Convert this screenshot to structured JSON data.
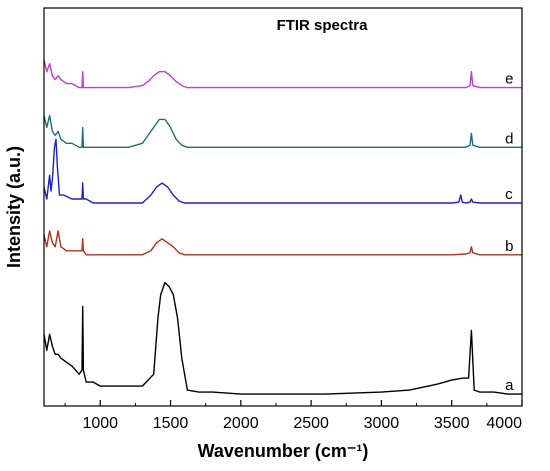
{
  "chart_data": {
    "type": "line",
    "title": "FTIR spectra",
    "xlabel": "Wavenumber (cm⁻¹)",
    "ylabel": "Intensity (a.u.)",
    "xlim": [
      600,
      4000
    ],
    "ylim": [
      0,
      1
    ],
    "xticks": [
      1000,
      1500,
      2000,
      2500,
      3000,
      3500,
      4000
    ],
    "y_ticks_shown": false,
    "grid": false,
    "legend": "none",
    "series": [
      {
        "name": "a",
        "color": "#000000",
        "x": [
          600,
          620,
          640,
          660,
          680,
          700,
          720,
          760,
          800,
          850,
          870,
          875,
          880,
          900,
          950,
          1000,
          1100,
          1200,
          1300,
          1380,
          1410,
          1430,
          1460,
          1490,
          1520,
          1550,
          1580,
          1620,
          1700,
          1800,
          2000,
          2300,
          2600,
          3000,
          3200,
          3400,
          3500,
          3580,
          3620,
          3640,
          3660,
          3700,
          3800,
          3900,
          4000
        ],
        "values": [
          0.18,
          0.14,
          0.18,
          0.15,
          0.13,
          0.13,
          0.12,
          0.11,
          0.1,
          0.08,
          0.09,
          0.25,
          0.09,
          0.06,
          0.06,
          0.05,
          0.05,
          0.05,
          0.05,
          0.08,
          0.22,
          0.28,
          0.31,
          0.3,
          0.28,
          0.22,
          0.12,
          0.04,
          0.035,
          0.035,
          0.03,
          0.03,
          0.03,
          0.035,
          0.04,
          0.055,
          0.065,
          0.07,
          0.07,
          0.19,
          0.04,
          0.035,
          0.035,
          0.03,
          0.03
        ]
      },
      {
        "name": "b",
        "color": "#b0341b",
        "x": [
          600,
          620,
          640,
          660,
          680,
          700,
          720,
          760,
          800,
          850,
          870,
          875,
          880,
          900,
          950,
          1000,
          1100,
          1200,
          1300,
          1360,
          1400,
          1440,
          1480,
          1520,
          1560,
          1600,
          1700,
          2000,
          2500,
          3000,
          3500,
          3600,
          3630,
          3640,
          3650,
          3700,
          4000
        ],
        "values": [
          0.43,
          0.4,
          0.44,
          0.41,
          0.4,
          0.44,
          0.4,
          0.39,
          0.39,
          0.39,
          0.39,
          0.42,
          0.39,
          0.38,
          0.38,
          0.38,
          0.38,
          0.38,
          0.38,
          0.39,
          0.41,
          0.42,
          0.41,
          0.4,
          0.385,
          0.38,
          0.38,
          0.38,
          0.38,
          0.38,
          0.38,
          0.382,
          0.385,
          0.4,
          0.385,
          0.38,
          0.38
        ]
      },
      {
        "name": "c",
        "color": "#2020c0",
        "x": [
          600,
          620,
          640,
          650,
          660,
          675,
          685,
          695,
          710,
          740,
          800,
          850,
          870,
          875,
          880,
          900,
          950,
          1000,
          1100,
          1200,
          1300,
          1360,
          1400,
          1440,
          1480,
          1520,
          1560,
          1600,
          1700,
          2000,
          2500,
          3000,
          3500,
          3550,
          3565,
          3575,
          3600,
          3630,
          3640,
          3650,
          3700,
          4000
        ],
        "values": [
          0.55,
          0.52,
          0.58,
          0.54,
          0.57,
          0.65,
          0.67,
          0.6,
          0.53,
          0.53,
          0.52,
          0.52,
          0.52,
          0.56,
          0.52,
          0.52,
          0.51,
          0.51,
          0.51,
          0.51,
          0.51,
          0.53,
          0.55,
          0.56,
          0.55,
          0.53,
          0.515,
          0.51,
          0.51,
          0.51,
          0.51,
          0.51,
          0.51,
          0.512,
          0.53,
          0.512,
          0.51,
          0.512,
          0.52,
          0.512,
          0.51,
          0.51
        ]
      },
      {
        "name": "d",
        "color": "#1f6f78",
        "x": [
          600,
          620,
          640,
          660,
          680,
          700,
          720,
          760,
          800,
          850,
          870,
          875,
          880,
          900,
          950,
          1000,
          1100,
          1200,
          1300,
          1340,
          1380,
          1420,
          1460,
          1500,
          1540,
          1580,
          1620,
          1700,
          2000,
          2500,
          3000,
          3500,
          3600,
          3630,
          3640,
          3650,
          3700,
          4000
        ],
        "values": [
          0.73,
          0.7,
          0.73,
          0.69,
          0.68,
          0.69,
          0.67,
          0.66,
          0.66,
          0.65,
          0.65,
          0.7,
          0.65,
          0.65,
          0.65,
          0.65,
          0.65,
          0.65,
          0.66,
          0.68,
          0.7,
          0.72,
          0.72,
          0.7,
          0.67,
          0.655,
          0.65,
          0.65,
          0.65,
          0.65,
          0.65,
          0.65,
          0.65,
          0.655,
          0.685,
          0.655,
          0.65,
          0.65
        ]
      },
      {
        "name": "e",
        "color": "#c23bd4",
        "x": [
          600,
          620,
          640,
          660,
          680,
          700,
          720,
          760,
          800,
          850,
          870,
          875,
          880,
          900,
          950,
          1000,
          1100,
          1200,
          1300,
          1340,
          1380,
          1420,
          1460,
          1500,
          1540,
          1580,
          1620,
          1700,
          2000,
          2500,
          3000,
          3500,
          3600,
          3630,
          3640,
          3650,
          3700,
          4000
        ],
        "values": [
          0.87,
          0.84,
          0.86,
          0.83,
          0.82,
          0.83,
          0.82,
          0.81,
          0.81,
          0.8,
          0.8,
          0.84,
          0.8,
          0.8,
          0.8,
          0.8,
          0.8,
          0.8,
          0.805,
          0.815,
          0.83,
          0.84,
          0.84,
          0.83,
          0.815,
          0.805,
          0.8,
          0.8,
          0.8,
          0.8,
          0.8,
          0.8,
          0.8,
          0.805,
          0.84,
          0.805,
          0.8,
          0.8
        ]
      }
    ]
  }
}
